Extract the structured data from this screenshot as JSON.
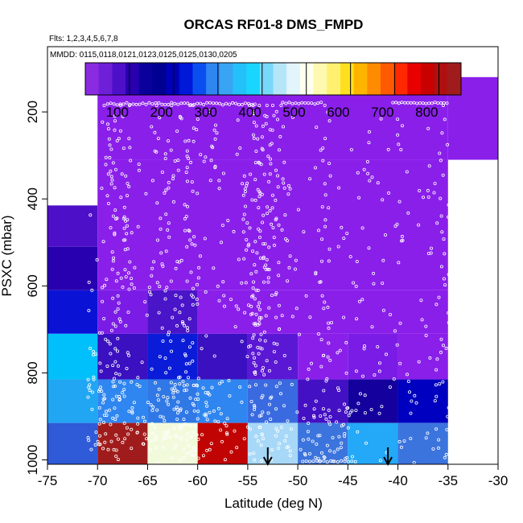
{
  "chart_data": {
    "type": "heatmap",
    "title": "ORCAS RF01-8 DMS_FMPD",
    "subtitle_flights": "Flts: 1,2,3,4,5,6,7,8",
    "subtitle_dates": "MMDD: 0115,0118,0121,0123,0125,0125,0130,0205",
    "xlabel": "Latitude (deg N)",
    "ylabel": "PSXC (mbar)",
    "xlim": [
      -75,
      -30
    ],
    "ylim": [
      1010,
      50
    ],
    "x_ticks": [
      -75,
      -70,
      -65,
      -60,
      -55,
      -50,
      -45,
      -40,
      -35,
      -30
    ],
    "x_tick_labels": [
      "-75",
      "-70",
      "-65",
      "-60",
      "-55",
      "-50",
      "-45",
      "-40",
      "-35",
      "-30"
    ],
    "y_ticks": [
      200,
      400,
      600,
      800,
      1000
    ],
    "y_tick_labels": [
      "200",
      "400",
      "600",
      "800",
      "1000"
    ],
    "colorbar": {
      "range": [
        0,
        850
      ],
      "ticks": [
        100,
        200,
        300,
        400,
        500,
        600,
        700,
        800
      ],
      "tick_labels": [
        "100",
        "200",
        "300",
        "400",
        "500",
        "600",
        "700",
        "800"
      ],
      "colors": [
        "#8a2be2",
        "#6e1fd8",
        "#4d10c8",
        "#2800b0",
        "#0a009c",
        "#000092",
        "#0000b4",
        "#0018d8",
        "#0a4ef0",
        "#2f86f0",
        "#3aa4f4",
        "#24c0fa",
        "#1ad6ff",
        "#78d8fa",
        "#b4e6f8",
        "#e2f4fc",
        "#ffffee",
        "#fff8b0",
        "#fff070",
        "#ffe020",
        "#ffb400",
        "#ff8c00",
        "#ff5a00",
        "#ff2800",
        "#e80000",
        "#c80000",
        "#ae1010",
        "#a01c1c"
      ]
    },
    "cells": [
      {
        "x0": -75,
        "x1": -70,
        "p0": 415,
        "p1": 510,
        "color": "#4d10c8"
      },
      {
        "x0": -75,
        "x1": -70,
        "p0": 510,
        "p1": 610,
        "color": "#2800b0"
      },
      {
        "x0": -75,
        "x1": -70,
        "p0": 610,
        "p1": 710,
        "color": "#0a12d6"
      },
      {
        "x0": -75,
        "x1": -70,
        "p0": 710,
        "p1": 815,
        "color": "#00c0fb"
      },
      {
        "x0": -75,
        "x1": -70,
        "p0": 815,
        "p1": 915,
        "color": "#21a6f3"
      },
      {
        "x0": -75,
        "x1": -70,
        "p0": 915,
        "p1": 1010,
        "color": "#2f5ad8"
      },
      {
        "x0": -70,
        "x1": -35,
        "p0": 120,
        "p1": 310,
        "color": "#8a1fea"
      },
      {
        "x0": -35,
        "x1": -30,
        "p0": 120,
        "p1": 310,
        "color": "#8a1fea"
      },
      {
        "x0": -70,
        "x1": -35,
        "p0": 310,
        "p1": 610,
        "color": "#8a1fea"
      },
      {
        "x0": -70,
        "x1": -65,
        "p0": 610,
        "p1": 710,
        "color": "#7a1ce6"
      },
      {
        "x0": -65,
        "x1": -60,
        "p0": 610,
        "p1": 710,
        "color": "#4a14c8"
      },
      {
        "x0": -60,
        "x1": -35,
        "p0": 610,
        "p1": 710,
        "color": "#8a1fea"
      },
      {
        "x0": -70,
        "x1": -65,
        "p0": 710,
        "p1": 815,
        "color": "#3a10c0"
      },
      {
        "x0": -65,
        "x1": -60,
        "p0": 710,
        "p1": 815,
        "color": "#0a1cd8"
      },
      {
        "x0": -60,
        "x1": -55,
        "p0": 710,
        "p1": 815,
        "color": "#3a10c0"
      },
      {
        "x0": -55,
        "x1": -50,
        "p0": 710,
        "p1": 815,
        "color": "#5a18d4"
      },
      {
        "x0": -50,
        "x1": -45,
        "p0": 710,
        "p1": 815,
        "color": "#8a1fea"
      },
      {
        "x0": -45,
        "x1": -40,
        "p0": 710,
        "p1": 815,
        "color": "#7a1ce6"
      },
      {
        "x0": -40,
        "x1": -35,
        "p0": 710,
        "p1": 815,
        "color": "#8a1fea"
      },
      {
        "x0": -70,
        "x1": -65,
        "p0": 815,
        "p1": 915,
        "color": "#2f86f0"
      },
      {
        "x0": -65,
        "x1": -60,
        "p0": 815,
        "p1": 915,
        "color": "#2f78e6"
      },
      {
        "x0": -60,
        "x1": -55,
        "p0": 815,
        "p1": 915,
        "color": "#2f86f0"
      },
      {
        "x0": -55,
        "x1": -50,
        "p0": 815,
        "p1": 915,
        "color": "#3a6ae0"
      },
      {
        "x0": -50,
        "x1": -45,
        "p0": 815,
        "p1": 915,
        "color": "#4410c4"
      },
      {
        "x0": -45,
        "x1": -40,
        "p0": 815,
        "p1": 915,
        "color": "#14009c"
      },
      {
        "x0": -40,
        "x1": -35,
        "p0": 815,
        "p1": 915,
        "color": "#0000c0"
      },
      {
        "x0": -70,
        "x1": -65,
        "p0": 915,
        "p1": 1010,
        "color": "#a01c1c"
      },
      {
        "x0": -65,
        "x1": -60,
        "p0": 915,
        "p1": 1010,
        "color": "#f2fadc"
      },
      {
        "x0": -60,
        "x1": -55,
        "p0": 915,
        "p1": 1010,
        "color": "#c00404"
      },
      {
        "x0": -55,
        "x1": -50,
        "p0": 915,
        "p1": 1010,
        "color": "#a8d8f8"
      },
      {
        "x0": -50,
        "x1": -45,
        "p0": 915,
        "p1": 1010,
        "color": "#3c74de"
      },
      {
        "x0": -45,
        "x1": -40,
        "p0": 915,
        "p1": 1010,
        "color": "#24a8f8"
      },
      {
        "x0": -40,
        "x1": -35,
        "p0": 915,
        "p1": 1010,
        "color": "#3c74de"
      }
    ],
    "arrows_lat": [
      -53,
      -41
    ],
    "legend": "colorbar top",
    "grid": false
  }
}
